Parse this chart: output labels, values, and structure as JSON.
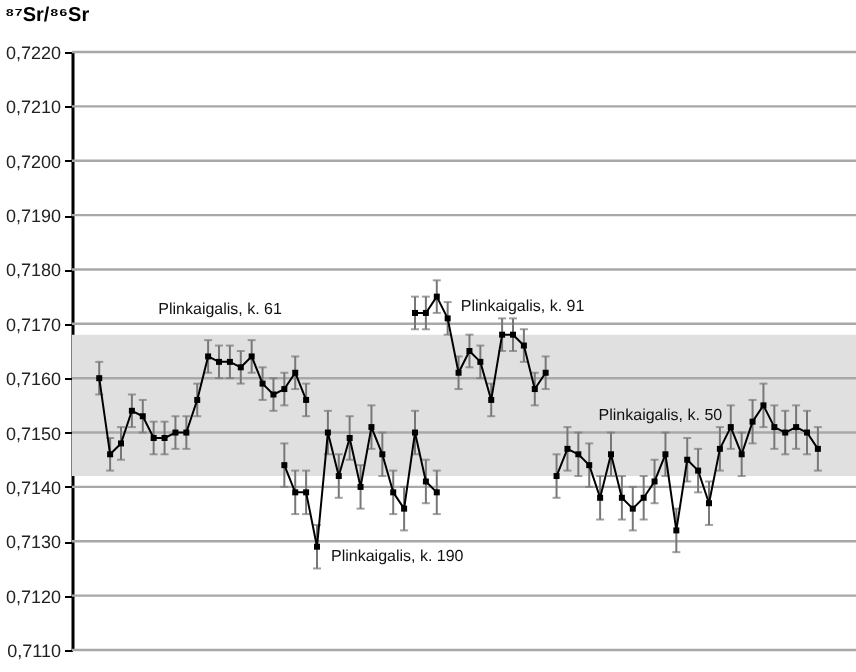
{
  "chart_data": {
    "type": "line",
    "ylabel": "⁸⁷Sr/⁸⁶Sr",
    "categories": [
      null,
      null,
      null,
      null,
      null,
      null,
      null,
      null,
      null,
      null,
      null,
      null,
      null,
      null,
      null,
      null,
      null,
      null,
      null,
      null,
      null,
      null,
      null,
      null,
      null,
      null,
      null,
      null,
      null,
      null,
      null,
      null,
      null,
      null,
      null,
      null,
      null,
      null,
      null,
      null,
      null,
      null,
      null,
      null,
      null,
      null,
      null,
      null,
      null,
      null,
      null,
      null,
      null,
      null,
      null,
      null,
      null,
      null,
      null,
      null,
      null,
      null,
      null,
      null,
      null,
      null,
      null,
      null,
      null,
      null,
      null,
      null
    ],
    "series": [
      {
        "name": "Plinkaigalis, k. 61",
        "color": "#000000",
        "values": [
          null,
          null,
          0.716,
          0.7146,
          0.7148,
          0.7154,
          0.7153,
          0.7149,
          0.7149,
          0.715,
          0.715,
          0.7156,
          0.7164,
          0.7163,
          0.7163,
          0.7162,
          0.7164,
          0.7159,
          0.7157,
          0.7158,
          0.7161,
          0.7156,
          null,
          null,
          null,
          null,
          null,
          null,
          null,
          null,
          null,
          null,
          null,
          null,
          null,
          null,
          null,
          null,
          null,
          null,
          null,
          null,
          null,
          null,
          null,
          null,
          null,
          null,
          null,
          null,
          null,
          null,
          null,
          null,
          null,
          null,
          null,
          null,
          null,
          null,
          null,
          null,
          null,
          null,
          null,
          null,
          null,
          null,
          null,
          null,
          null,
          null
        ],
        "errors": [
          null,
          null,
          0.0003,
          0.0003,
          0.0003,
          0.0003,
          0.0003,
          0.0003,
          0.0003,
          0.0003,
          0.0003,
          0.0003,
          0.0003,
          0.0003,
          0.0003,
          0.0003,
          0.0003,
          0.0003,
          0.0003,
          0.0003,
          0.0003,
          0.0003,
          null,
          null,
          null,
          null,
          null,
          null,
          null,
          null,
          null,
          null,
          null,
          null,
          null,
          null,
          null,
          null,
          null,
          null,
          null,
          null,
          null,
          null,
          null,
          null,
          null,
          null,
          null,
          null,
          null,
          null,
          null,
          null,
          null,
          null,
          null,
          null,
          null,
          null,
          null,
          null,
          null,
          null,
          null,
          null,
          null,
          null,
          null,
          null,
          null,
          null
        ]
      },
      {
        "name": "Plinkaigalis, k. 190",
        "color": "#000000",
        "values": [
          null,
          null,
          null,
          null,
          null,
          null,
          null,
          null,
          null,
          null,
          null,
          null,
          null,
          null,
          null,
          null,
          null,
          null,
          null,
          0.7144,
          0.7139,
          0.7139,
          0.7129,
          0.715,
          0.7142,
          0.7149,
          0.714,
          0.7151,
          0.7146,
          0.7139,
          0.7136,
          0.715,
          0.7141,
          0.7139,
          null,
          null,
          null,
          null,
          null,
          null,
          null,
          null,
          null,
          null,
          null,
          null,
          null,
          null,
          null,
          null,
          null,
          null,
          null,
          null,
          null,
          null,
          null,
          null,
          null,
          null,
          null,
          null,
          null,
          null,
          null,
          null,
          null,
          null,
          null,
          null,
          null,
          null
        ],
        "errors": [
          null,
          null,
          null,
          null,
          null,
          null,
          null,
          null,
          null,
          null,
          null,
          null,
          null,
          null,
          null,
          null,
          null,
          null,
          null,
          0.0004,
          0.0004,
          0.0004,
          0.0004,
          0.0004,
          0.0004,
          0.0004,
          0.0004,
          0.0004,
          0.0004,
          0.0004,
          0.0004,
          0.0004,
          0.0004,
          0.0004,
          null,
          null,
          null,
          null,
          null,
          null,
          null,
          null,
          null,
          null,
          null,
          null,
          null,
          null,
          null,
          null,
          null,
          null,
          null,
          null,
          null,
          null,
          null,
          null,
          null,
          null,
          null,
          null,
          null,
          null,
          null,
          null,
          null,
          null,
          null,
          null,
          null,
          null
        ]
      },
      {
        "name": "Plinkaigalis, k. 91",
        "color": "#000000",
        "values": [
          null,
          null,
          null,
          null,
          null,
          null,
          null,
          null,
          null,
          null,
          null,
          null,
          null,
          null,
          null,
          null,
          null,
          null,
          null,
          null,
          null,
          null,
          null,
          null,
          null,
          null,
          null,
          null,
          null,
          null,
          null,
          0.7172,
          0.7172,
          0.7175,
          0.7171,
          0.7161,
          0.7165,
          0.7163,
          0.7156,
          0.7168,
          0.7168,
          0.7166,
          0.7158,
          0.7161,
          null,
          null,
          null,
          null,
          null,
          null,
          null,
          null,
          null,
          null,
          null,
          null,
          null,
          null,
          null,
          null,
          null,
          null,
          null,
          null,
          null,
          null,
          null,
          null,
          null,
          null,
          null,
          null
        ],
        "errors": [
          null,
          null,
          null,
          null,
          null,
          null,
          null,
          null,
          null,
          null,
          null,
          null,
          null,
          null,
          null,
          null,
          null,
          null,
          null,
          null,
          null,
          null,
          null,
          null,
          null,
          null,
          null,
          null,
          null,
          null,
          null,
          0.0003,
          0.0003,
          0.0003,
          0.0003,
          0.0003,
          0.0003,
          0.0003,
          0.0003,
          0.0003,
          0.0003,
          0.0003,
          0.0003,
          0.0003,
          null,
          null,
          null,
          null,
          null,
          null,
          null,
          null,
          null,
          null,
          null,
          null,
          null,
          null,
          null,
          null,
          null,
          null,
          null,
          null,
          null,
          null,
          null,
          null,
          null,
          null,
          null,
          null
        ]
      },
      {
        "name": "Plinkaigalis, k. 50",
        "color": "#000000",
        "values": [
          null,
          null,
          null,
          null,
          null,
          null,
          null,
          null,
          null,
          null,
          null,
          null,
          null,
          null,
          null,
          null,
          null,
          null,
          null,
          null,
          null,
          null,
          null,
          null,
          null,
          null,
          null,
          null,
          null,
          null,
          null,
          null,
          null,
          null,
          null,
          null,
          null,
          null,
          null,
          null,
          null,
          null,
          null,
          null,
          0.7142,
          0.7147,
          0.7146,
          0.7144,
          0.7138,
          0.7146,
          0.7138,
          0.7136,
          0.7138,
          0.7141,
          0.7146,
          0.7132,
          0.7145,
          0.7143,
          0.7137,
          0.7147,
          0.7151,
          0.7146,
          0.7152,
          0.7155,
          0.7151,
          0.715,
          0.7151,
          0.715,
          0.7147,
          null,
          null,
          null
        ],
        "errors": [
          null,
          null,
          null,
          null,
          null,
          null,
          null,
          null,
          null,
          null,
          null,
          null,
          null,
          null,
          null,
          null,
          null,
          null,
          null,
          null,
          null,
          null,
          null,
          null,
          null,
          null,
          null,
          null,
          null,
          null,
          null,
          null,
          null,
          null,
          null,
          null,
          null,
          null,
          null,
          null,
          null,
          null,
          null,
          null,
          0.0004,
          0.0004,
          0.0004,
          0.0004,
          0.0004,
          0.0004,
          0.0004,
          0.0004,
          0.0004,
          0.0004,
          0.0004,
          0.0004,
          0.0004,
          0.0004,
          0.0004,
          0.0004,
          0.0004,
          0.0004,
          0.0004,
          0.0004,
          0.0004,
          0.0004,
          0.0004,
          0.0004,
          0.0004,
          null,
          null,
          null
        ]
      }
    ],
    "ylim": [
      0.711,
      0.722
    ],
    "yticks": [
      {
        "value": 0.711,
        "label": "0,7110"
      },
      {
        "value": 0.712,
        "label": "0,7120"
      },
      {
        "value": 0.713,
        "label": "0,7130"
      },
      {
        "value": 0.714,
        "label": "0,7140"
      },
      {
        "value": 0.715,
        "label": "0,7150"
      },
      {
        "value": 0.716,
        "label": "0,7160"
      },
      {
        "value": 0.717,
        "label": "0,7170"
      },
      {
        "value": 0.718,
        "label": "0,7180"
      },
      {
        "value": 0.719,
        "label": "0,7190"
      },
      {
        "value": 0.72,
        "label": "0,7200"
      },
      {
        "value": 0.721,
        "label": "0,7210"
      },
      {
        "value": 0.722,
        "label": "0,7220"
      }
    ],
    "bands": [
      {
        "axis": "y",
        "from": 0.7142,
        "to": 0.7168,
        "color": "#e0e0e0"
      }
    ],
    "grid": "y",
    "marker": "square",
    "line_style": "solid"
  }
}
